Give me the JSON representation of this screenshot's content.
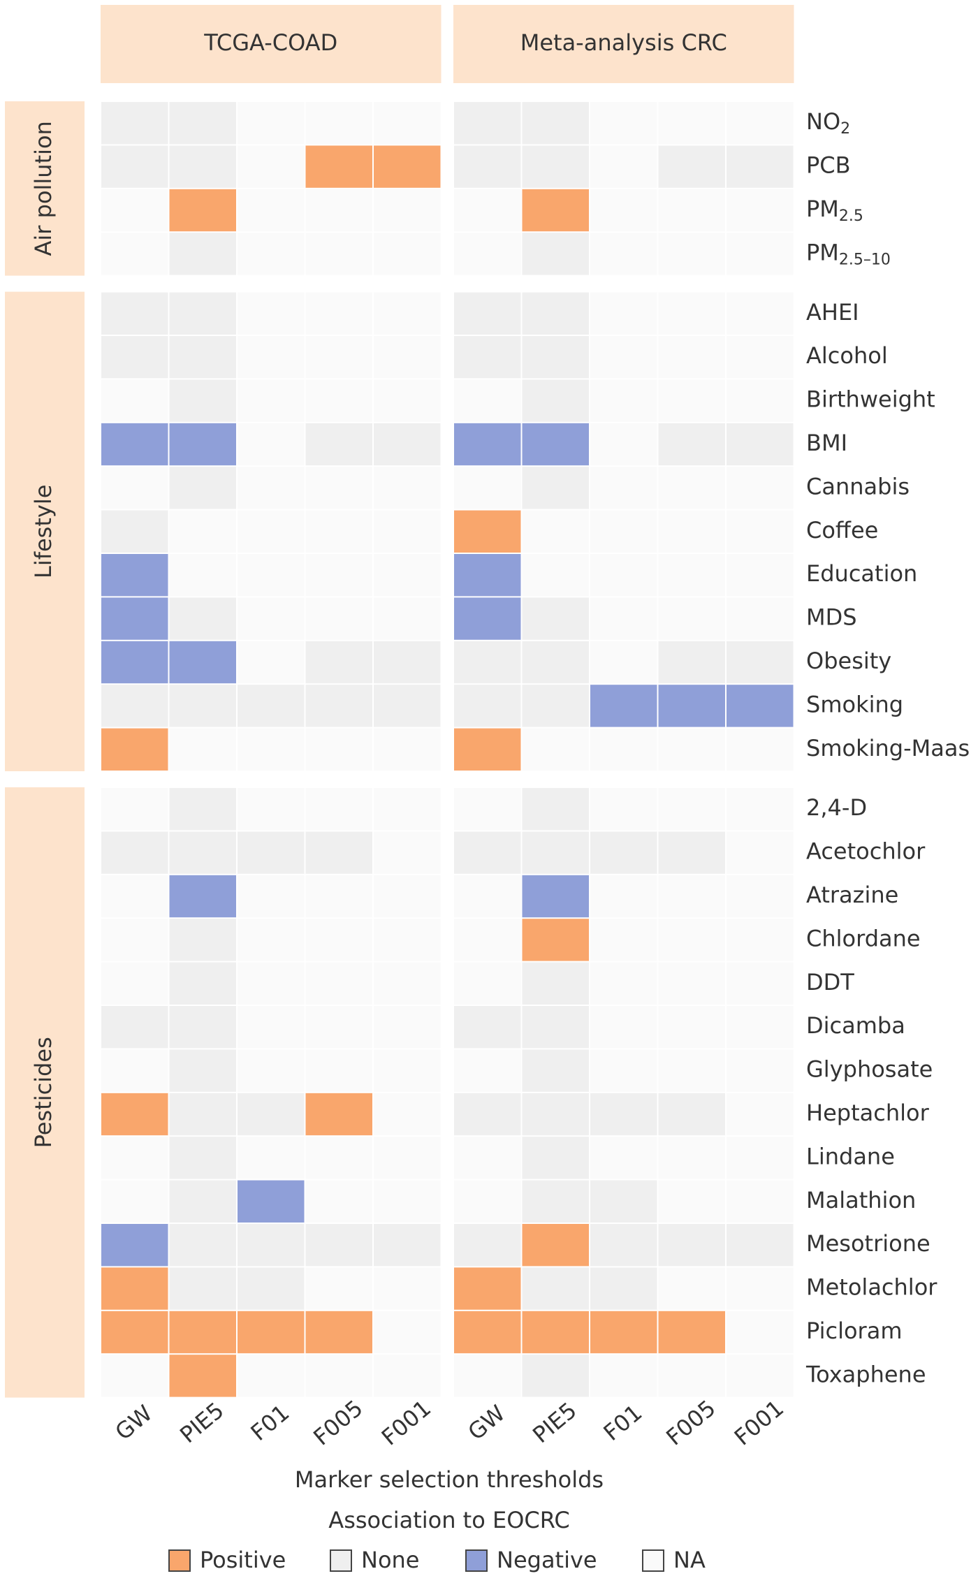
{
  "chart_data": {
    "type": "heatmap",
    "panels": [
      "TCGA-COAD",
      "Meta-analysis CRC"
    ],
    "columns": [
      "GW",
      "PIE5",
      "F01",
      "F005",
      "F001"
    ],
    "xlabel": "Marker selection thresholds",
    "legend": {
      "title": "Association to EOCRC",
      "items": [
        {
          "name": "Positive",
          "color": "#f9a66c"
        },
        {
          "name": "None",
          "color": "#efefef"
        },
        {
          "name": "Negative",
          "color": "#8f9fd8"
        },
        {
          "name": "NA",
          "color": "#fafafa"
        }
      ]
    },
    "group_color": "#fde3cc",
    "groups": [
      {
        "name": "Air pollution",
        "rows": [
          {
            "label": "NO",
            "sub": "2",
            "values": [
              [
                "None",
                "None",
                "NA",
                "NA",
                "NA"
              ],
              [
                "None",
                "None",
                "NA",
                "NA",
                "NA"
              ]
            ]
          },
          {
            "label": "PCB",
            "values": [
              [
                "None",
                "None",
                "NA",
                "Positive",
                "Positive"
              ],
              [
                "None",
                "None",
                "NA",
                "None",
                "None"
              ]
            ]
          },
          {
            "label": "PM",
            "sub": "2.5",
            "values": [
              [
                "NA",
                "Positive",
                "NA",
                "NA",
                "NA"
              ],
              [
                "NA",
                "Positive",
                "NA",
                "NA",
                "NA"
              ]
            ]
          },
          {
            "label": "PM",
            "sub": "2.5–10",
            "values": [
              [
                "NA",
                "None",
                "NA",
                "NA",
                "NA"
              ],
              [
                "NA",
                "None",
                "NA",
                "NA",
                "NA"
              ]
            ]
          }
        ]
      },
      {
        "name": "Lifestyle",
        "rows": [
          {
            "label": "AHEI",
            "values": [
              [
                "None",
                "None",
                "NA",
                "NA",
                "NA"
              ],
              [
                "None",
                "None",
                "NA",
                "NA",
                "NA"
              ]
            ]
          },
          {
            "label": "Alcohol",
            "values": [
              [
                "None",
                "None",
                "NA",
                "NA",
                "NA"
              ],
              [
                "None",
                "None",
                "NA",
                "NA",
                "NA"
              ]
            ]
          },
          {
            "label": "Birthweight",
            "values": [
              [
                "NA",
                "None",
                "NA",
                "NA",
                "NA"
              ],
              [
                "NA",
                "None",
                "NA",
                "NA",
                "NA"
              ]
            ]
          },
          {
            "label": "BMI",
            "values": [
              [
                "Negative",
                "Negative",
                "NA",
                "None",
                "None"
              ],
              [
                "Negative",
                "Negative",
                "NA",
                "None",
                "None"
              ]
            ]
          },
          {
            "label": "Cannabis",
            "values": [
              [
                "NA",
                "None",
                "NA",
                "NA",
                "NA"
              ],
              [
                "NA",
                "None",
                "NA",
                "NA",
                "NA"
              ]
            ]
          },
          {
            "label": "Coffee",
            "values": [
              [
                "None",
                "NA",
                "NA",
                "NA",
                "NA"
              ],
              [
                "Positive",
                "NA",
                "NA",
                "NA",
                "NA"
              ]
            ]
          },
          {
            "label": "Education",
            "values": [
              [
                "Negative",
                "NA",
                "NA",
                "NA",
                "NA"
              ],
              [
                "Negative",
                "NA",
                "NA",
                "NA",
                "NA"
              ]
            ]
          },
          {
            "label": "MDS",
            "values": [
              [
                "Negative",
                "None",
                "NA",
                "NA",
                "NA"
              ],
              [
                "Negative",
                "None",
                "NA",
                "NA",
                "NA"
              ]
            ]
          },
          {
            "label": "Obesity",
            "values": [
              [
                "Negative",
                "Negative",
                "NA",
                "None",
                "None"
              ],
              [
                "None",
                "None",
                "NA",
                "None",
                "None"
              ]
            ]
          },
          {
            "label": "Smoking",
            "values": [
              [
                "None",
                "None",
                "None",
                "None",
                "None"
              ],
              [
                "None",
                "None",
                "Negative",
                "Negative",
                "Negative"
              ]
            ]
          },
          {
            "label": "Smoking-Maas",
            "values": [
              [
                "Positive",
                "NA",
                "NA",
                "NA",
                "NA"
              ],
              [
                "Positive",
                "NA",
                "NA",
                "NA",
                "NA"
              ]
            ]
          }
        ]
      },
      {
        "name": "Pesticides",
        "rows": [
          {
            "label": "2,4-D",
            "values": [
              [
                "NA",
                "None",
                "NA",
                "NA",
                "NA"
              ],
              [
                "NA",
                "None",
                "NA",
                "NA",
                "NA"
              ]
            ]
          },
          {
            "label": "Acetochlor",
            "values": [
              [
                "None",
                "None",
                "None",
                "None",
                "NA"
              ],
              [
                "None",
                "None",
                "None",
                "None",
                "NA"
              ]
            ]
          },
          {
            "label": "Atrazine",
            "values": [
              [
                "NA",
                "Negative",
                "NA",
                "NA",
                "NA"
              ],
              [
                "NA",
                "Negative",
                "NA",
                "NA",
                "NA"
              ]
            ]
          },
          {
            "label": "Chlordane",
            "values": [
              [
                "NA",
                "None",
                "NA",
                "NA",
                "NA"
              ],
              [
                "NA",
                "Positive",
                "NA",
                "NA",
                "NA"
              ]
            ]
          },
          {
            "label": "DDT",
            "values": [
              [
                "NA",
                "None",
                "NA",
                "NA",
                "NA"
              ],
              [
                "NA",
                "None",
                "NA",
                "NA",
                "NA"
              ]
            ]
          },
          {
            "label": "Dicamba",
            "values": [
              [
                "None",
                "None",
                "NA",
                "NA",
                "NA"
              ],
              [
                "None",
                "None",
                "NA",
                "NA",
                "NA"
              ]
            ]
          },
          {
            "label": "Glyphosate",
            "values": [
              [
                "NA",
                "None",
                "NA",
                "NA",
                "NA"
              ],
              [
                "NA",
                "None",
                "NA",
                "NA",
                "NA"
              ]
            ]
          },
          {
            "label": "Heptachlor",
            "values": [
              [
                "Positive",
                "None",
                "None",
                "Positive",
                "NA"
              ],
              [
                "None",
                "None",
                "None",
                "None",
                "NA"
              ]
            ]
          },
          {
            "label": "Lindane",
            "values": [
              [
                "NA",
                "None",
                "NA",
                "NA",
                "NA"
              ],
              [
                "NA",
                "None",
                "NA",
                "NA",
                "NA"
              ]
            ]
          },
          {
            "label": "Malathion",
            "values": [
              [
                "NA",
                "None",
                "Negative",
                "NA",
                "NA"
              ],
              [
                "NA",
                "None",
                "None",
                "NA",
                "NA"
              ]
            ]
          },
          {
            "label": "Mesotrione",
            "values": [
              [
                "Negative",
                "None",
                "None",
                "None",
                "None"
              ],
              [
                "None",
                "Positive",
                "None",
                "None",
                "None"
              ]
            ]
          },
          {
            "label": "Metolachlor",
            "values": [
              [
                "Positive",
                "None",
                "None",
                "NA",
                "NA"
              ],
              [
                "Positive",
                "None",
                "None",
                "NA",
                "NA"
              ]
            ]
          },
          {
            "label": "Picloram",
            "values": [
              [
                "Positive",
                "Positive",
                "Positive",
                "Positive",
                "NA"
              ],
              [
                "Positive",
                "Positive",
                "Positive",
                "Positive",
                "NA"
              ]
            ]
          },
          {
            "label": "Toxaphene",
            "values": [
              [
                "NA",
                "Positive",
                "NA",
                "NA",
                "NA"
              ],
              [
                "NA",
                "None",
                "NA",
                "NA",
                "NA"
              ]
            ]
          }
        ]
      }
    ]
  }
}
